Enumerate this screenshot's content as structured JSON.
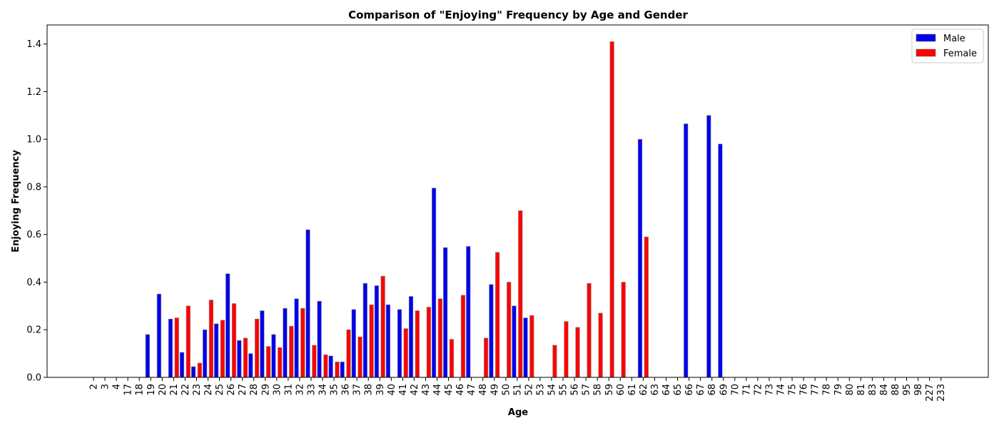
{
  "chart_data": {
    "type": "bar",
    "title": "Comparison of \"Enjoying\" Frequency by Age and Gender",
    "xlabel": "Age",
    "ylabel": "Enjoying Frequency",
    "ylim": [
      0,
      1.48
    ],
    "yticks": [
      "0.0",
      "0.2",
      "0.4",
      "0.6",
      "0.8",
      "1.0",
      "1.2",
      "1.4"
    ],
    "legend_position": "top-right",
    "categories": [
      "2",
      "3",
      "4",
      "17",
      "18",
      "19",
      "20",
      "21",
      "22",
      "23",
      "24",
      "25",
      "26",
      "27",
      "28",
      "29",
      "30",
      "31",
      "32",
      "33",
      "34",
      "35",
      "36",
      "37",
      "38",
      "39",
      "40",
      "41",
      "42",
      "43",
      "44",
      "45",
      "46",
      "47",
      "48",
      "49",
      "50",
      "51",
      "52",
      "53",
      "54",
      "55",
      "56",
      "57",
      "58",
      "59",
      "60",
      "61",
      "62",
      "63",
      "64",
      "65",
      "66",
      "67",
      "68",
      "69",
      "70",
      "71",
      "72",
      "73",
      "74",
      "75",
      "76",
      "77",
      "78",
      "79",
      "80",
      "81",
      "83",
      "84",
      "88",
      "95",
      "98",
      "227",
      "233"
    ],
    "series": [
      {
        "name": "Male",
        "color": "#0000ee",
        "values": [
          0,
          0,
          0,
          0,
          0,
          0.18,
          0.35,
          0.245,
          0.105,
          0.045,
          0.2,
          0.225,
          0.435,
          0.155,
          0.1,
          0.28,
          0.18,
          0.29,
          0.33,
          0.62,
          0.32,
          0.09,
          0.065,
          0.285,
          0.395,
          0.385,
          0.305,
          0.285,
          0.34,
          0,
          0.795,
          0.545,
          0,
          0.55,
          0,
          0.39,
          0,
          0.3,
          0.25,
          0,
          0,
          0,
          0,
          0,
          0,
          0,
          0,
          0,
          1.0,
          0,
          0,
          0,
          1.065,
          0,
          1.1,
          0.98,
          0,
          0,
          0,
          0,
          0,
          0,
          0,
          0,
          0,
          0,
          0,
          0,
          0,
          0,
          0,
          0,
          0,
          0,
          0
        ]
      },
      {
        "name": "Female",
        "color": "#ff0000",
        "values": [
          0,
          0,
          0,
          0,
          0,
          0,
          0,
          0.25,
          0.3,
          0.06,
          0.325,
          0.24,
          0.31,
          0.165,
          0.245,
          0.13,
          0.125,
          0.215,
          0.29,
          0.135,
          0.095,
          0.065,
          0.2,
          0.17,
          0.305,
          0.425,
          0,
          0.205,
          0.28,
          0.295,
          0.33,
          0.16,
          0.345,
          0,
          0.165,
          0.525,
          0.4,
          0.7,
          0.26,
          0,
          0.135,
          0.235,
          0.21,
          0.395,
          0.27,
          1.41,
          0.4,
          0,
          0.59,
          0,
          0,
          0,
          0,
          0,
          0,
          0,
          0,
          0,
          0,
          0,
          0,
          0,
          0,
          0,
          0,
          0,
          0,
          0,
          0,
          0,
          0,
          0,
          0,
          0,
          0
        ]
      }
    ]
  }
}
